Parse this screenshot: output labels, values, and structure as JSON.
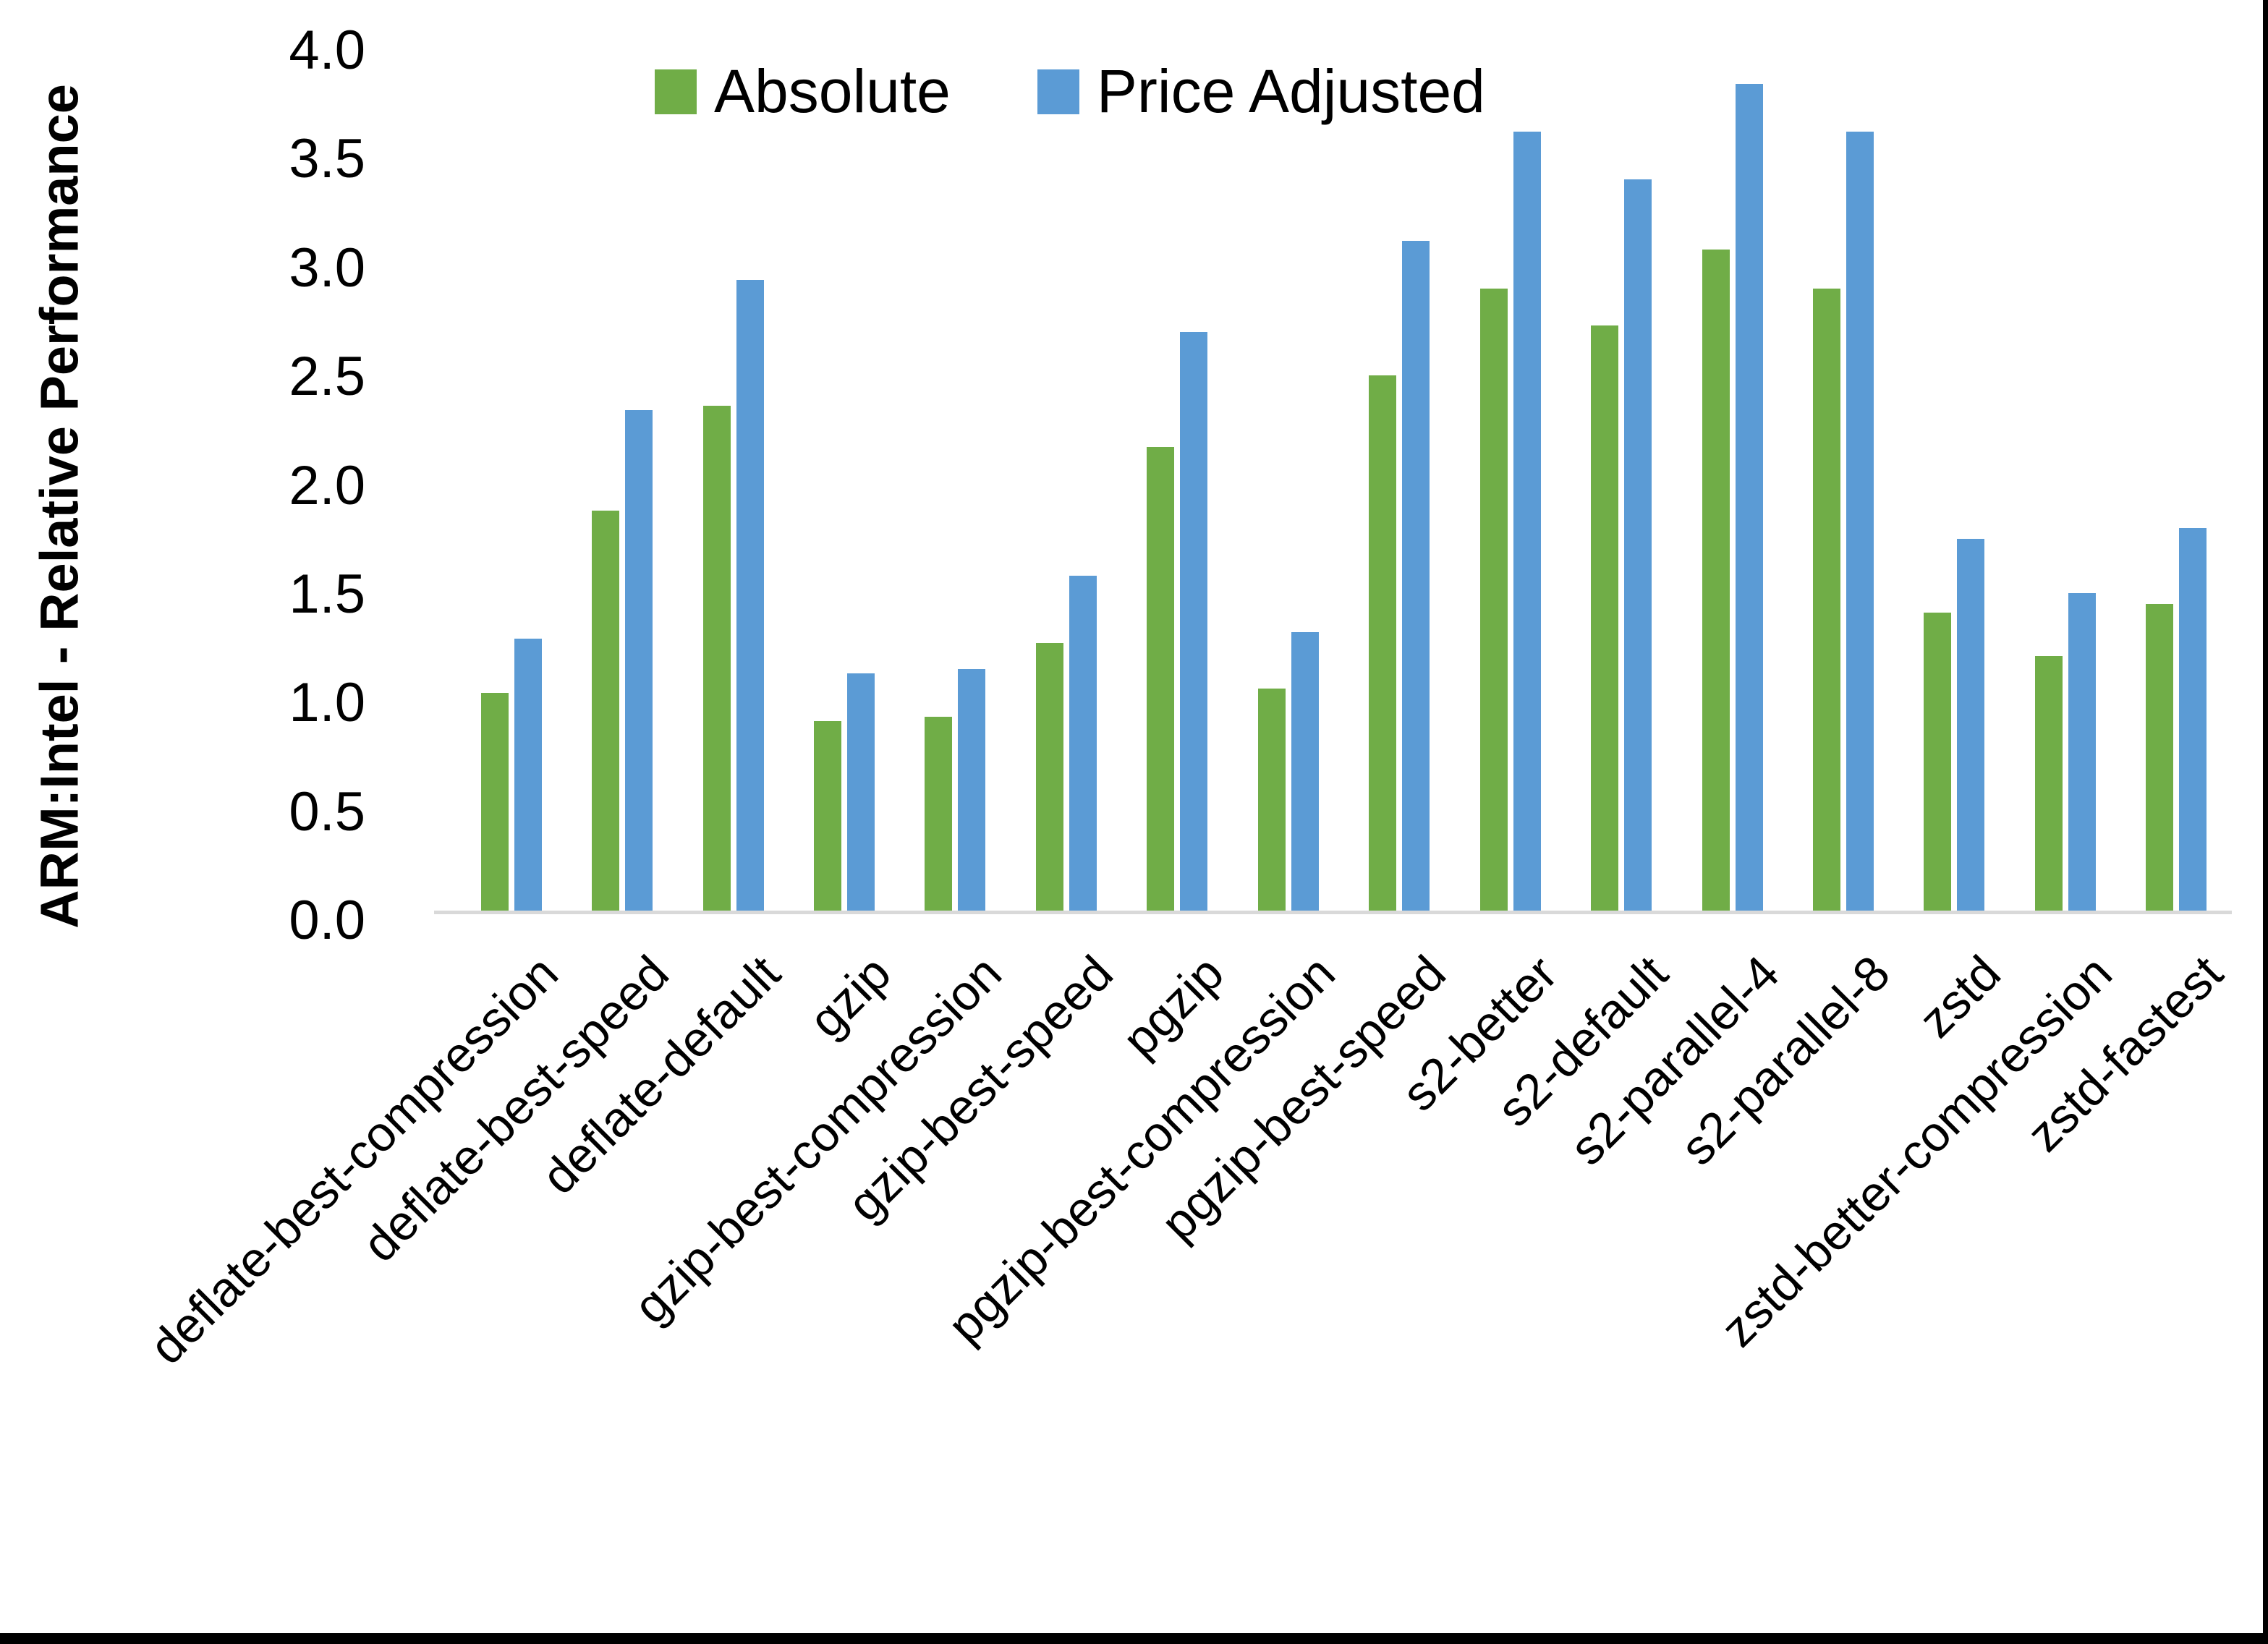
{
  "chart_data": {
    "type": "bar",
    "title": "",
    "ylabel": "ARM:Intel - Relative Performance",
    "xlabel": "",
    "ylim": [
      0.0,
      4.0
    ],
    "ytick_labels": [
      "0.0",
      "0.5",
      "1.0",
      "1.5",
      "2.0",
      "2.5",
      "3.0",
      "3.5",
      "4.0"
    ],
    "ytick_values": [
      0.0,
      0.5,
      1.0,
      1.5,
      2.0,
      2.5,
      3.0,
      3.5,
      4.0
    ],
    "grid": false,
    "legend_position": "top",
    "categories": [
      "deflate-best-compression",
      "deflate-best-speed",
      "deflate-default",
      "gzip",
      "gzip-best-compression",
      "gzip-best-speed",
      "pgzip",
      "pgzip-best-compression",
      "pgzip-best-speed",
      "s2-better",
      "s2-default",
      "s2-parallel-4",
      "s2-parallel-8",
      "zstd",
      "zstd-better-compression",
      "zstd-fastest"
    ],
    "series": [
      {
        "name": "Absolute",
        "color": "#70AD47",
        "values": [
          1.0,
          1.84,
          2.32,
          0.87,
          0.89,
          1.23,
          2.13,
          1.02,
          2.46,
          2.86,
          2.69,
          3.04,
          2.86,
          1.37,
          1.17,
          1.41
        ]
      },
      {
        "name": "Price Adjusted",
        "color": "#5B9BD5",
        "values": [
          1.25,
          2.3,
          2.9,
          1.09,
          1.11,
          1.54,
          2.66,
          1.28,
          3.08,
          3.58,
          3.36,
          3.8,
          3.58,
          1.71,
          1.46,
          1.76
        ]
      }
    ],
    "colors": {
      "axis_line": "#d9d9d9",
      "text": "#000000",
      "background": "#ffffff",
      "window_border": "#000000"
    }
  }
}
